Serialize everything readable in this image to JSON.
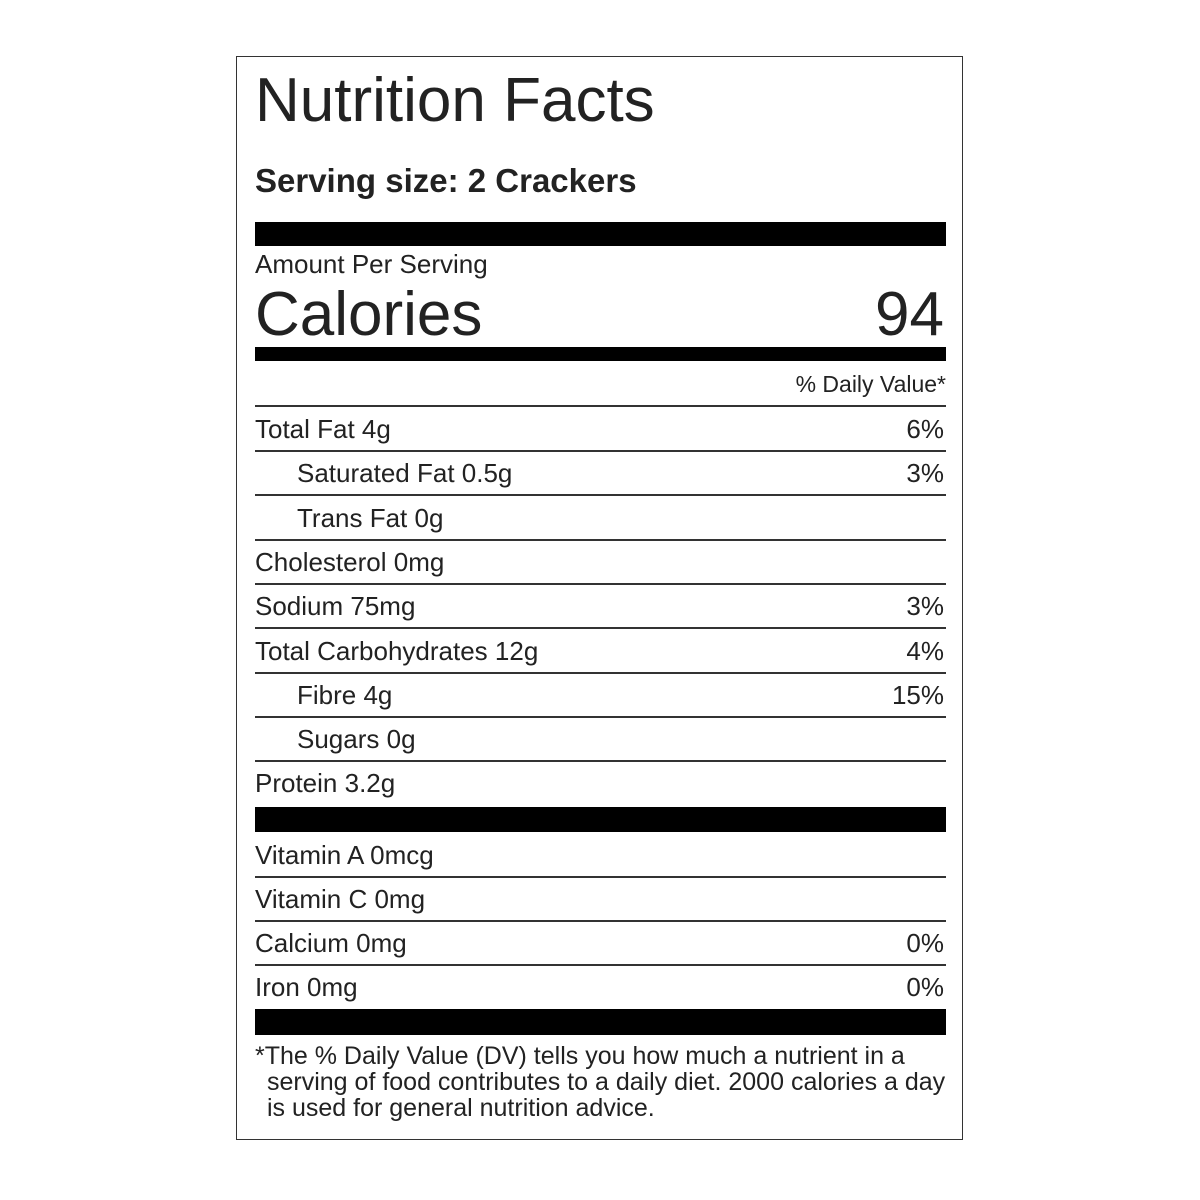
{
  "title": "Nutrition Facts",
  "serving_size": "Serving size: 2 Crackers",
  "amount_per_serving": "Amount Per Serving",
  "calories": {
    "label": "Calories",
    "value": "94"
  },
  "daily_value_header": "% Daily Value*",
  "nutrients": [
    {
      "label": "Total Fat 4g",
      "dv": "6%",
      "indent": false
    },
    {
      "label": "Saturated Fat 0.5g",
      "dv": "3%",
      "indent": true
    },
    {
      "label": "Trans Fat 0g",
      "indent": true
    },
    {
      "label": "Cholesterol 0mg",
      "indent": false
    },
    {
      "label": "Sodium 75mg",
      "dv": "3%",
      "indent": false
    },
    {
      "label": "Total Carbohydrates 12g",
      "dv": "4%",
      "indent": false
    },
    {
      "label": "Fibre 4g",
      "dv": "15%",
      "indent": true
    },
    {
      "label": "Sugars 0g",
      "indent": true
    },
    {
      "label": "Protein 3.2g",
      "indent": false
    }
  ],
  "vitamins": [
    {
      "label": "Vitamin A 0mcg"
    },
    {
      "label": "Vitamin C 0mg"
    },
    {
      "label": "Calcium 0mg",
      "dv": "0%"
    },
    {
      "label": "Iron 0mg",
      "dv": "0%"
    }
  ],
  "footnote": "*The % Daily Value (DV) tells you how much a nutrient in a serving of food contributes to a daily diet. 2000 calories a day is used for general nutrition advice."
}
